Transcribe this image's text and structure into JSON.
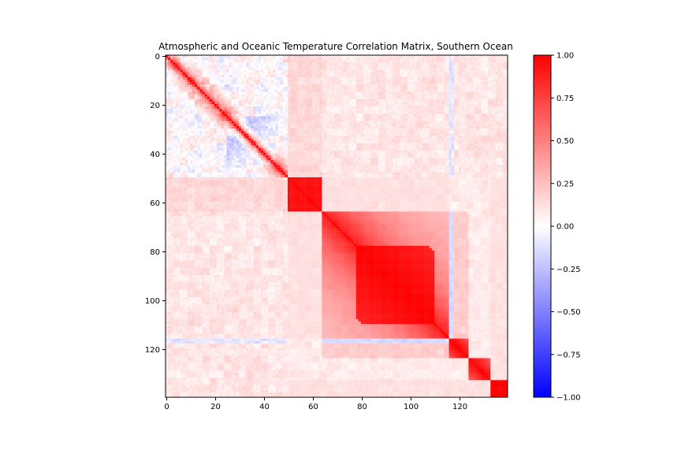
{
  "chart_data": {
    "type": "heatmap",
    "title": "Atmospheric and Oceanic Temperature Correlation Matrix, Southern Ocean",
    "matrix_size": 140,
    "x_ticks": [
      0,
      20,
      40,
      60,
      80,
      100,
      120
    ],
    "y_ticks": [
      0,
      20,
      40,
      60,
      80,
      100,
      120
    ],
    "colorbar": {
      "vmin": -1.0,
      "vmax": 1.0,
      "ticks": [
        "1.00",
        "0.75",
        "0.50",
        "0.25",
        "0.00",
        "−0.25",
        "−0.50",
        "−0.75",
        "−1.00"
      ],
      "colormap": "bwr",
      "colors": {
        "low": "#0000ff",
        "mid": "#ffffff",
        "high": "#ff0000"
      }
    },
    "diagonal_value": 1.0,
    "blocks": [
      {
        "start": 0,
        "end": 50,
        "mean_correlation": 0.05,
        "diagonal_band_width": 3
      },
      {
        "start": 50,
        "end": 64,
        "mean_correlation": 0.95
      },
      {
        "start": 64,
        "end": 116,
        "mean_correlation": 0.6,
        "core_start": 78,
        "core_end": 110,
        "core_correlation": 1.0
      },
      {
        "start": 116,
        "end": 124,
        "mean_correlation": 0.6
      },
      {
        "start": 124,
        "end": 133,
        "mean_correlation": 0.3
      },
      {
        "start": 133,
        "end": 140,
        "mean_correlation": 1.0
      }
    ],
    "notable_features": [
      {
        "rows": [
          30,
          40
        ],
        "cols": [
          28,
          45
        ],
        "correlation": -0.4
      },
      {
        "rows": [
          0,
          50
        ],
        "cols": [
          50,
          64
        ],
        "correlation": 0.15
      },
      {
        "rows": [
          64,
          116
        ],
        "cols": [
          0,
          50
        ],
        "correlation": 0.1
      }
    ]
  }
}
